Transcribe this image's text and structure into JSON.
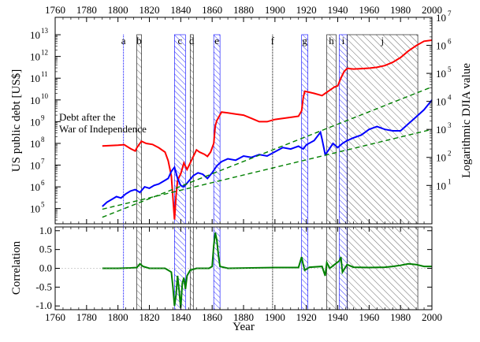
{
  "chart_data": {
    "type": "line",
    "top_panel": {
      "x_range": [
        1760,
        2000
      ],
      "x_ticks": [
        "1760",
        "1780",
        "1800",
        "1820",
        "1840",
        "1860",
        "1880",
        "1900",
        "1920",
        "1940",
        "1960",
        "1980",
        "2000"
      ],
      "left_axis": {
        "label": "US public debt [US$]",
        "scale": "log",
        "log_range": [
          4.3,
          13.8
        ],
        "ticks": [
          {
            "exp": 5,
            "text": "10",
            "sup": "5"
          },
          {
            "exp": 6,
            "text": "10",
            "sup": "6"
          },
          {
            "exp": 7,
            "text": "10",
            "sup": "7"
          },
          {
            "exp": 8,
            "text": "10",
            "sup": "8"
          },
          {
            "exp": 9,
            "text": "10",
            "sup": "9"
          },
          {
            "exp": 10,
            "text": "10",
            "sup": "10"
          },
          {
            "exp": 11,
            "text": "10",
            "sup": "11"
          },
          {
            "exp": 12,
            "text": "10",
            "sup": "12"
          },
          {
            "exp": 13,
            "text": "10",
            "sup": "13"
          }
        ]
      },
      "right_axis": {
        "label": "Logarithmic DJIA value",
        "scale": "log",
        "log_range": [
          -0.37,
          7.0
        ],
        "ticks": [
          {
            "exp": 1,
            "text": "10",
            "sup": "1"
          },
          {
            "exp": 2,
            "text": "10",
            "sup": "2"
          },
          {
            "exp": 3,
            "text": "10",
            "sup": "3"
          },
          {
            "exp": 4,
            "text": "10",
            "sup": "4"
          },
          {
            "exp": 5,
            "text": "10",
            "sup": "5"
          },
          {
            "exp": 6,
            "text": "10",
            "sup": "6"
          },
          {
            "exp": 7,
            "text": "10",
            "sup": "7"
          }
        ]
      },
      "annotation": [
        "Debt after the",
        "War of Independence"
      ],
      "series": [
        {
          "name": "US public debt",
          "color": "#ff0000",
          "axis": "left",
          "points": [
            [
              1790,
              7.88
            ],
            [
              1795,
              7.9
            ],
            [
              1800,
              7.92
            ],
            [
              1804,
              7.94
            ],
            [
              1808,
              7.76
            ],
            [
              1811,
              7.65
            ],
            [
              1812,
              7.8
            ],
            [
              1815,
              8.1
            ],
            [
              1818,
              8.0
            ],
            [
              1822,
              7.95
            ],
            [
              1826,
              7.8
            ],
            [
              1830,
              7.6
            ],
            [
              1832,
              7.2
            ],
            [
              1834,
              6.5
            ],
            [
              1835,
              5.5
            ],
            [
              1836,
              4.5
            ],
            [
              1837,
              5.6
            ],
            [
              1838,
              6.3
            ],
            [
              1840,
              6.6
            ],
            [
              1842,
              7.1
            ],
            [
              1844,
              6.8
            ],
            [
              1846,
              7.1
            ],
            [
              1848,
              7.4
            ],
            [
              1850,
              7.7
            ],
            [
              1852,
              7.6
            ],
            [
              1855,
              7.5
            ],
            [
              1857,
              7.4
            ],
            [
              1859,
              7.6
            ],
            [
              1861,
              8.0
            ],
            [
              1862,
              8.8
            ],
            [
              1863,
              9.05
            ],
            [
              1866,
              9.44
            ],
            [
              1870,
              9.4
            ],
            [
              1875,
              9.35
            ],
            [
              1880,
              9.3
            ],
            [
              1885,
              9.15
            ],
            [
              1890,
              9.0
            ],
            [
              1895,
              9.0
            ],
            [
              1900,
              9.1
            ],
            [
              1905,
              9.15
            ],
            [
              1910,
              9.2
            ],
            [
              1915,
              9.25
            ],
            [
              1917,
              9.5
            ],
            [
              1918,
              10.1
            ],
            [
              1919,
              10.4
            ],
            [
              1922,
              10.35
            ],
            [
              1925,
              10.3
            ],
            [
              1930,
              10.2
            ],
            [
              1932,
              10.3
            ],
            [
              1935,
              10.45
            ],
            [
              1938,
              10.6
            ],
            [
              1940,
              10.65
            ],
            [
              1942,
              11.0
            ],
            [
              1944,
              11.3
            ],
            [
              1946,
              11.45
            ],
            [
              1950,
              11.42
            ],
            [
              1955,
              11.44
            ],
            [
              1960,
              11.46
            ],
            [
              1965,
              11.5
            ],
            [
              1970,
              11.58
            ],
            [
              1975,
              11.73
            ],
            [
              1980,
              11.95
            ],
            [
              1985,
              12.25
            ],
            [
              1990,
              12.5
            ],
            [
              1995,
              12.7
            ],
            [
              2000,
              12.75
            ]
          ]
        },
        {
          "name": "DJIA value",
          "color": "#0000ff",
          "axis": "right",
          "points": [
            [
              1790,
              0.25
            ],
            [
              1793,
              0.4
            ],
            [
              1796,
              0.5
            ],
            [
              1799,
              0.6
            ],
            [
              1802,
              0.55
            ],
            [
              1805,
              0.7
            ],
            [
              1808,
              0.8
            ],
            [
              1811,
              0.85
            ],
            [
              1814,
              0.75
            ],
            [
              1817,
              0.95
            ],
            [
              1820,
              0.9
            ],
            [
              1823,
              1.0
            ],
            [
              1826,
              1.05
            ],
            [
              1829,
              1.15
            ],
            [
              1832,
              1.25
            ],
            [
              1834,
              1.5
            ],
            [
              1836,
              1.65
            ],
            [
              1838,
              1.25
            ],
            [
              1840,
              1.0
            ],
            [
              1842,
              0.95
            ],
            [
              1845,
              1.15
            ],
            [
              1848,
              1.35
            ],
            [
              1851,
              1.45
            ],
            [
              1854,
              1.4
            ],
            [
              1857,
              1.25
            ],
            [
              1860,
              1.45
            ],
            [
              1863,
              1.7
            ],
            [
              1866,
              1.85
            ],
            [
              1870,
              1.95
            ],
            [
              1875,
              1.9
            ],
            [
              1880,
              2.05
            ],
            [
              1885,
              2.0
            ],
            [
              1890,
              2.1
            ],
            [
              1895,
              2.05
            ],
            [
              1900,
              2.2
            ],
            [
              1905,
              2.35
            ],
            [
              1910,
              2.3
            ],
            [
              1915,
              2.4
            ],
            [
              1918,
              2.3
            ],
            [
              1920,
              2.45
            ],
            [
              1925,
              2.6
            ],
            [
              1929,
              2.9
            ],
            [
              1930,
              2.65
            ],
            [
              1932,
              2.1
            ],
            [
              1934,
              2.25
            ],
            [
              1937,
              2.5
            ],
            [
              1940,
              2.35
            ],
            [
              1943,
              2.5
            ],
            [
              1946,
              2.6
            ],
            [
              1950,
              2.7
            ],
            [
              1955,
              2.8
            ],
            [
              1960,
              3.0
            ],
            [
              1965,
              3.1
            ],
            [
              1970,
              3.0
            ],
            [
              1975,
              2.95
            ],
            [
              1980,
              2.95
            ],
            [
              1985,
              3.2
            ],
            [
              1990,
              3.45
            ],
            [
              1995,
              3.7
            ],
            [
              2000,
              4.05
            ]
          ]
        },
        {
          "name": "Debt trend",
          "color": "#008000",
          "style": "dashed",
          "axis": "left",
          "points": [
            [
              1790,
              4.6
            ],
            [
              2000,
              10.6
            ]
          ]
        },
        {
          "name": "DJIA trend",
          "color": "#008000",
          "style": "dashed",
          "axis": "right",
          "points": [
            [
              1790,
              0.15
            ],
            [
              2000,
              3.0
            ]
          ]
        }
      ],
      "crisis_bands": [
        {
          "label": "a",
          "start": 1803,
          "end": 1804,
          "style": "blue-line"
        },
        {
          "label": "b",
          "start": 1812,
          "end": 1815,
          "style": "black-hatch"
        },
        {
          "label": "c",
          "start": 1836,
          "end": 1843,
          "style": "blue-hatch"
        },
        {
          "label": "d",
          "start": 1846,
          "end": 1848,
          "style": "black-hatch"
        },
        {
          "label": "e",
          "start": 1861,
          "end": 1865,
          "style": "blue-hatch"
        },
        {
          "label": "f",
          "start": 1898,
          "end": 1899,
          "style": "black-line"
        },
        {
          "label": "g",
          "start": 1917,
          "end": 1921,
          "style": "blue-hatch"
        },
        {
          "label": "h",
          "start": 1933,
          "end": 1939,
          "style": "black-hatch"
        },
        {
          "label": "i",
          "start": 1941,
          "end": 1946,
          "style": "blue-hatch"
        },
        {
          "label": "j",
          "start": 1946,
          "end": 1991,
          "style": "black-hatch"
        }
      ]
    },
    "bottom_panel": {
      "ylabel": "Correlation",
      "xlabel": "Year",
      "x_range": [
        1760,
        2000
      ],
      "ylim": [
        -1.1,
        1.1
      ],
      "y_ticks": [
        "-1.0",
        "-0.5",
        "0.0",
        "0.5",
        "1.0"
      ],
      "x_ticks": [
        "1760",
        "1780",
        "1800",
        "1820",
        "1840",
        "1860",
        "1880",
        "1900",
        "1920",
        "1940",
        "1960",
        "1980",
        "2000"
      ],
      "series": [
        {
          "name": "Correlation",
          "color": "#008000",
          "points": [
            [
              1790,
              0.0
            ],
            [
              1800,
              0.0
            ],
            [
              1808,
              0.01
            ],
            [
              1812,
              0.02
            ],
            [
              1814,
              0.12
            ],
            [
              1816,
              0.05
            ],
            [
              1820,
              0.0
            ],
            [
              1830,
              0.0
            ],
            [
              1834,
              -0.1
            ],
            [
              1835,
              -0.5
            ],
            [
              1836,
              -1.0
            ],
            [
              1837,
              -0.7
            ],
            [
              1838,
              -0.2
            ],
            [
              1839,
              -0.6
            ],
            [
              1840,
              -1.05
            ],
            [
              1841,
              -0.4
            ],
            [
              1842,
              -0.25
            ],
            [
              1843,
              -0.55
            ],
            [
              1844,
              -0.2
            ],
            [
              1846,
              -0.05
            ],
            [
              1850,
              0.0
            ],
            [
              1858,
              0.0
            ],
            [
              1860,
              0.05
            ],
            [
              1861,
              0.6
            ],
            [
              1862,
              0.95
            ],
            [
              1863,
              0.75
            ],
            [
              1864,
              0.35
            ],
            [
              1865,
              0.05
            ],
            [
              1870,
              0.0
            ],
            [
              1900,
              0.02
            ],
            [
              1915,
              0.02
            ],
            [
              1917,
              0.3
            ],
            [
              1918,
              0.1
            ],
            [
              1919,
              -0.05
            ],
            [
              1922,
              0.03
            ],
            [
              1930,
              0.05
            ],
            [
              1932,
              -0.2
            ],
            [
              1933,
              0.15
            ],
            [
              1935,
              0.0
            ],
            [
              1938,
              0.1
            ],
            [
              1941,
              0.2
            ],
            [
              1942,
              0.3
            ],
            [
              1943,
              -0.1
            ],
            [
              1946,
              0.1
            ],
            [
              1950,
              0.03
            ],
            [
              1960,
              0.02
            ],
            [
              1970,
              0.03
            ],
            [
              1975,
              0.05
            ],
            [
              1980,
              0.08
            ],
            [
              1985,
              0.12
            ],
            [
              1990,
              0.1
            ],
            [
              1995,
              0.05
            ],
            [
              2000,
              0.05
            ]
          ]
        }
      ]
    }
  }
}
